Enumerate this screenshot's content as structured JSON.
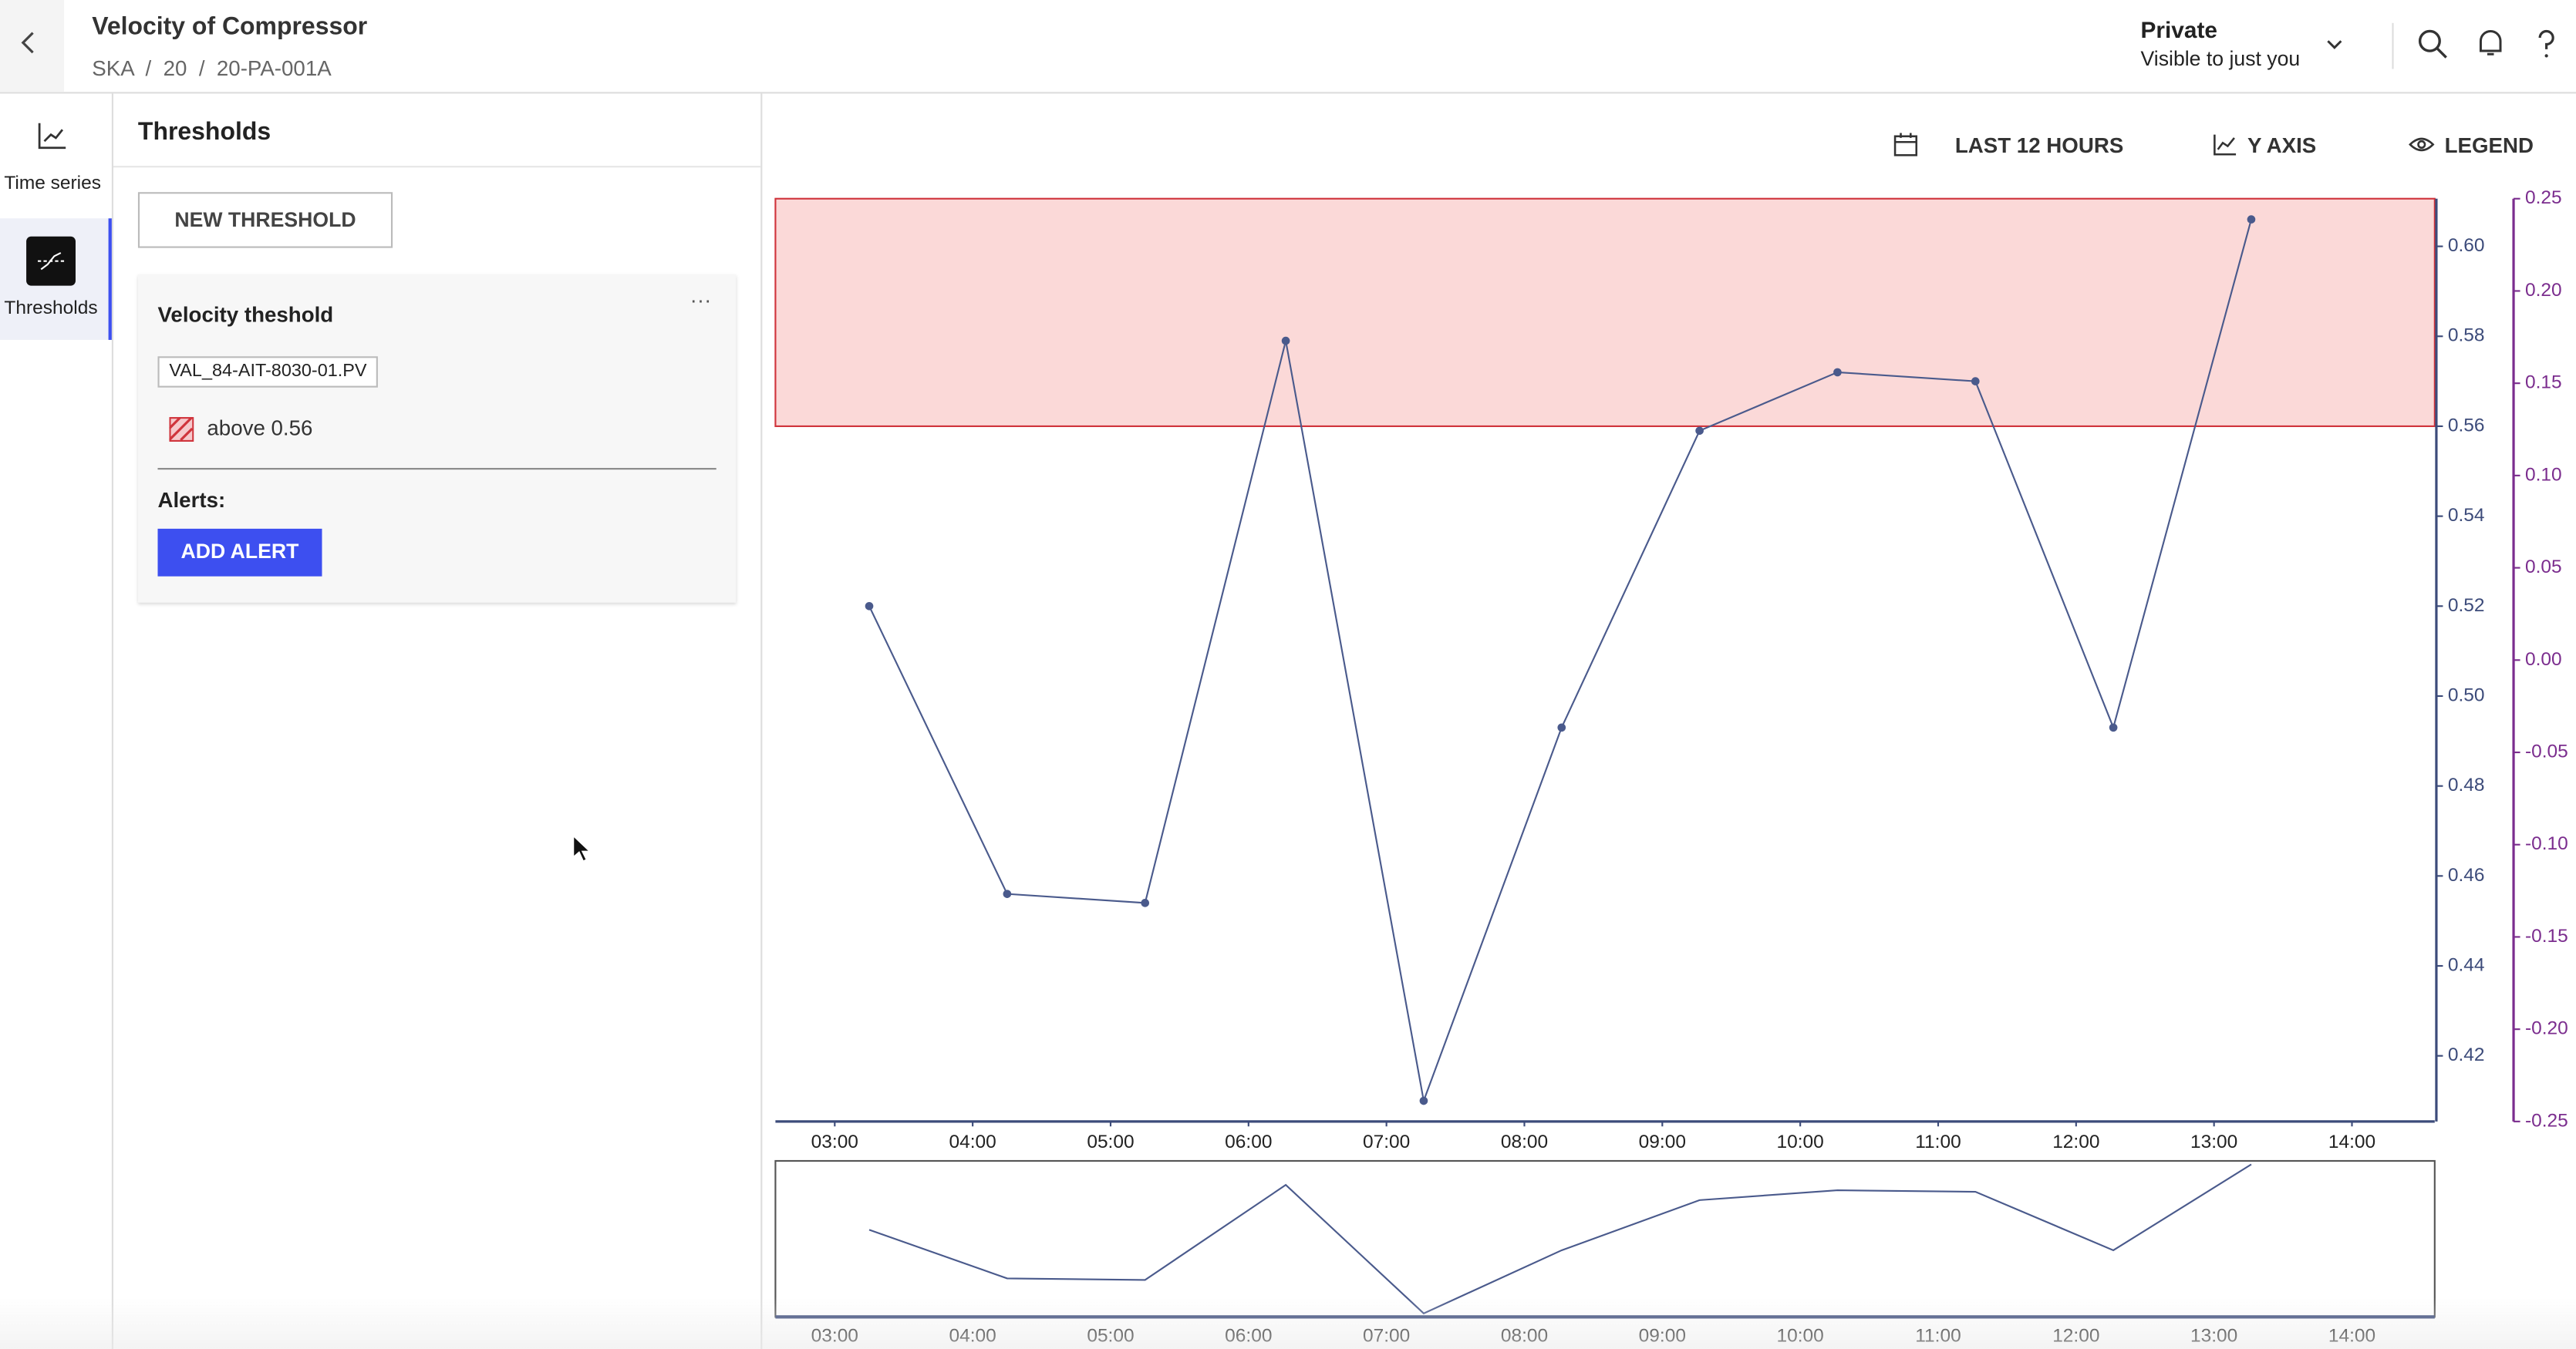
{
  "header": {
    "title": "Velocity of Compressor",
    "breadcrumb": "SKA  /  20  /  20-PA-001A",
    "visibility": "Private",
    "visibility_note": "Visible to just you"
  },
  "nav": [
    {
      "label": "Time series"
    },
    {
      "label": "Thresholds"
    }
  ],
  "panel": {
    "title": "Thresholds",
    "new_button": "NEW THRESHOLD",
    "card": {
      "name": "Velocity theshold",
      "more": "···",
      "tag": "VAL_84-AIT-8030-01.PV",
      "condition": "above 0.56",
      "alerts_label": "Alerts:",
      "add_alert": "ADD ALERT"
    }
  },
  "toolbar": [
    "LAST 12 HOURS",
    "Y AXIS",
    "LEGEND"
  ],
  "chart_data": {
    "type": "line",
    "x": [
      3.25,
      4.25,
      5.25,
      6.27,
      7.27,
      8.27,
      9.27,
      10.27,
      11.27,
      12.27,
      13.27
    ],
    "values": [
      0.52,
      0.456,
      0.454,
      0.579,
      0.41,
      0.493,
      0.559,
      0.572,
      0.57,
      0.493,
      0.606
    ],
    "color": "#4a5a8c",
    "threshold": 0.56,
    "threshold_color": "#fbd9d8",
    "threshold_line_color": "#d0343c",
    "xlim": [
      2.57,
      14.6
    ],
    "xticks": [
      {
        "value": 3,
        "label": "03:00"
      },
      {
        "value": 4,
        "label": "04:00"
      },
      {
        "value": 5,
        "label": "05:00"
      },
      {
        "value": 6,
        "label": "06:00"
      },
      {
        "value": 7,
        "label": "07:00"
      },
      {
        "value": 8,
        "label": "08:00"
      },
      {
        "value": 9,
        "label": "09:00"
      },
      {
        "value": 10,
        "label": "10:00"
      },
      {
        "value": 11,
        "label": "11:00"
      },
      {
        "value": 12,
        "label": "12:00"
      },
      {
        "value": 13,
        "label": "13:00"
      },
      {
        "value": 14,
        "label": "14:00"
      }
    ],
    "ylim": [
      0.4054,
      0.6106
    ],
    "yticks": [
      {
        "value": 0.42,
        "label": "0.42"
      },
      {
        "value": 0.44,
        "label": "0.44"
      },
      {
        "value": 0.46,
        "label": "0.46"
      },
      {
        "value": 0.48,
        "label": "0.48"
      },
      {
        "value": 0.5,
        "label": "0.50"
      },
      {
        "value": 0.52,
        "label": "0.52"
      },
      {
        "value": 0.54,
        "label": "0.54"
      },
      {
        "value": 0.56,
        "label": "0.56"
      },
      {
        "value": 0.58,
        "label": "0.58"
      },
      {
        "value": 0.6,
        "label": "0.60"
      }
    ],
    "y_color": "#3c4b7a",
    "y2lim": [
      -0.25,
      0.25
    ],
    "y2ticks": [
      {
        "value": -0.25,
        "label": "-0.25"
      },
      {
        "value": -0.2,
        "label": "-0.20"
      },
      {
        "value": -0.15,
        "label": "-0.15"
      },
      {
        "value": -0.1,
        "label": "-0.10"
      },
      {
        "value": -0.05,
        "label": "-0.05"
      },
      {
        "value": 0,
        "label": "0.00"
      },
      {
        "value": 0.05,
        "label": "0.05"
      },
      {
        "value": 0.1,
        "label": "0.10"
      },
      {
        "value": 0.15,
        "label": "0.15"
      },
      {
        "value": 0.2,
        "label": "0.20"
      },
      {
        "value": 0.25,
        "label": "0.25"
      }
    ],
    "y2_color": "#7b2d8e"
  }
}
